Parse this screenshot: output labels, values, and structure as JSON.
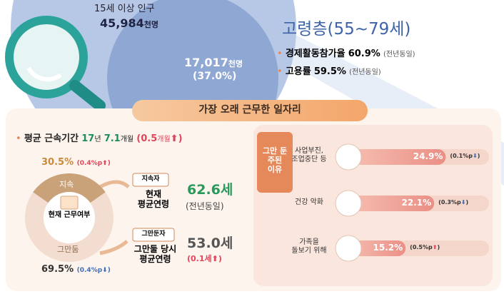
{
  "header": {
    "population_label": "15세 이상 인구",
    "population_value": "45,984",
    "population_unit": "천명",
    "elderly_value": "17,017",
    "elderly_unit": "천명",
    "elderly_share": "(37.0%)",
    "title": "고령층(55~79세)",
    "stats": [
      {
        "label": "경제활동참가율",
        "value": "60.9%",
        "note": "(전년동일)"
      },
      {
        "label": "고용률",
        "value": "59.5%",
        "note": "(전년동일)"
      }
    ]
  },
  "banner": "가장 오래 근무한 일자리",
  "tenure": {
    "label": "평균 근속기간",
    "years": "17",
    "years_unit": "년",
    "months": "7.1",
    "months_unit": "개월",
    "change_open": "(0.5",
    "change_unit": "개월",
    "change_close": ")"
  },
  "status": {
    "title": "현재 근무여부",
    "segments": [
      {
        "name": "지속",
        "value": 30.5,
        "value_label": "30.5%",
        "change_open": "(0.4%p",
        "change_close": ")"
      },
      {
        "name": "그만둠",
        "value": 69.5,
        "value_label": "69.5%",
        "change_open": "(0.4%p",
        "change_close": ")"
      }
    ]
  },
  "ages": [
    {
      "tag": "지속자",
      "label": "현재\n평균연령",
      "value": "62.6세",
      "change": "(전년동일)"
    },
    {
      "tag": "그만둔자",
      "label": "그만둘 당시\n평균연령",
      "value": "53.0세",
      "change": "(0.1세"
    }
  ],
  "age_change_close": ")",
  "reasons": {
    "title": "그만 둔\n주된\n이유",
    "items": [
      {
        "label": "사업부진,\n조업중단 등",
        "value": 24.9,
        "value_label": "24.9%",
        "change_open": "(0.1%p",
        "change_close": ")"
      },
      {
        "label": "건강 악화",
        "value": 22.1,
        "value_label": "22.1%",
        "change_open": "(0.3%p",
        "change_close": ")"
      },
      {
        "label": "가족을\n돌보기 위해",
        "value": 15.2,
        "value_label": "15.2%",
        "change_open": "(0.5%p",
        "change_close": ")"
      }
    ]
  }
}
